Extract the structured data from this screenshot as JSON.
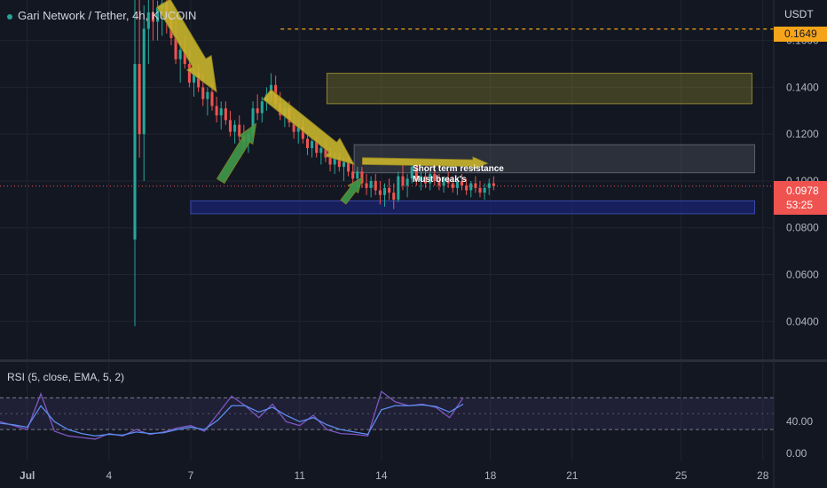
{
  "header": {
    "symbol_title": "Gari Network / Tether, 4h, KUCOIN",
    "price_unit": "USDT"
  },
  "price_badge": {
    "price": "0.0978",
    "countdown": "53:25"
  },
  "target_badge": {
    "price": "0.1649"
  },
  "annotations": {
    "resistance_label": "Short term resistance",
    "breakout_label": "Must break's"
  },
  "colors": {
    "background": "#131722",
    "up_candle": "#26a69a",
    "down_candle": "#ef5350",
    "resistance_zone": "#b5a82e",
    "support_zone": "#1a237e",
    "trend_arrow": "#c9b52c",
    "bounce_arrow": "#3f9a4a",
    "target_line": "#f6a51a",
    "rsi_line": "#7e57c2",
    "rsi_ema": "#5b8def"
  },
  "chart_data": [
    {
      "type": "candlestick",
      "title": "Gari Network / Tether, 4h, KUCOIN",
      "ylabel": "USDT",
      "ylim": [
        0.0238,
        0.1773
      ],
      "y_ticks": [
        "0.1600",
        "0.1400",
        "0.1200",
        "0.1000",
        "0.0800",
        "0.0600",
        "0.0400"
      ],
      "x_ticks": [
        "Jul",
        "4",
        "7",
        "11",
        "14",
        "18",
        "21",
        "25",
        "28"
      ],
      "x_range_days": [
        0,
        28.4
      ],
      "x_tick_days": [
        1,
        4,
        7,
        11,
        14,
        18,
        21,
        25,
        28
      ],
      "last_price": 0.0978,
      "target_level": 0.1649,
      "zones": [
        {
          "name": "upper resistance",
          "from_day": 12.0,
          "to_day": 27.6,
          "low": 0.133,
          "high": 0.146
        },
        {
          "name": "short term resistance",
          "from_day": 13.0,
          "to_day": 27.7,
          "low": 0.1035,
          "high": 0.1155
        },
        {
          "name": "support",
          "from_day": 7.0,
          "to_day": 27.7,
          "low": 0.086,
          "high": 0.0915
        }
      ],
      "candles": {
        "start_day": 4.95,
        "step_days": 0.1667,
        "ohlc": [
          [
            0.075,
            0.178,
            0.038,
            0.15
          ],
          [
            0.15,
            0.18,
            0.11,
            0.12
          ],
          [
            0.12,
            0.175,
            0.1,
            0.165
          ],
          [
            0.165,
            0.178,
            0.15,
            0.172
          ],
          [
            0.172,
            0.178,
            0.16,
            0.168
          ],
          [
            0.168,
            0.177,
            0.16,
            0.174
          ],
          [
            0.174,
            0.178,
            0.162,
            0.176
          ],
          [
            0.176,
            0.178,
            0.163,
            0.17
          ],
          [
            0.17,
            0.176,
            0.158,
            0.161
          ],
          [
            0.161,
            0.17,
            0.15,
            0.152
          ],
          [
            0.152,
            0.16,
            0.142,
            0.156
          ],
          [
            0.156,
            0.162,
            0.148,
            0.15
          ],
          [
            0.15,
            0.156,
            0.14,
            0.142
          ],
          [
            0.142,
            0.15,
            0.136,
            0.146
          ],
          [
            0.146,
            0.15,
            0.138,
            0.14
          ],
          [
            0.14,
            0.146,
            0.132,
            0.135
          ],
          [
            0.135,
            0.14,
            0.128,
            0.138
          ],
          [
            0.138,
            0.142,
            0.13,
            0.132
          ],
          [
            0.132,
            0.136,
            0.125,
            0.128
          ],
          [
            0.128,
            0.134,
            0.122,
            0.131
          ],
          [
            0.131,
            0.134,
            0.124,
            0.126
          ],
          [
            0.126,
            0.13,
            0.119,
            0.121
          ],
          [
            0.121,
            0.126,
            0.116,
            0.124
          ],
          [
            0.124,
            0.128,
            0.117,
            0.119
          ],
          [
            0.119,
            0.124,
            0.114,
            0.117
          ],
          [
            0.117,
            0.122,
            0.112,
            0.12
          ],
          [
            0.12,
            0.134,
            0.118,
            0.131
          ],
          [
            0.131,
            0.137,
            0.126,
            0.129
          ],
          [
            0.129,
            0.136,
            0.125,
            0.134
          ],
          [
            0.134,
            0.14,
            0.13,
            0.137
          ],
          [
            0.137,
            0.146,
            0.134,
            0.141
          ],
          [
            0.141,
            0.145,
            0.131,
            0.133
          ],
          [
            0.133,
            0.138,
            0.126,
            0.128
          ],
          [
            0.128,
            0.134,
            0.123,
            0.131
          ],
          [
            0.131,
            0.134,
            0.123,
            0.125
          ],
          [
            0.125,
            0.129,
            0.118,
            0.121
          ],
          [
            0.121,
            0.126,
            0.116,
            0.123
          ],
          [
            0.123,
            0.126,
            0.116,
            0.118
          ],
          [
            0.118,
            0.121,
            0.111,
            0.114
          ],
          [
            0.114,
            0.119,
            0.11,
            0.117
          ],
          [
            0.117,
            0.119,
            0.11,
            0.112
          ],
          [
            0.112,
            0.116,
            0.107,
            0.114
          ],
          [
            0.114,
            0.117,
            0.108,
            0.11
          ],
          [
            0.11,
            0.114,
            0.104,
            0.107
          ],
          [
            0.107,
            0.112,
            0.103,
            0.11
          ],
          [
            0.11,
            0.112,
            0.104,
            0.106
          ],
          [
            0.106,
            0.11,
            0.1,
            0.108
          ],
          [
            0.108,
            0.111,
            0.102,
            0.104
          ],
          [
            0.104,
            0.108,
            0.098,
            0.101
          ],
          [
            0.101,
            0.106,
            0.097,
            0.104
          ],
          [
            0.104,
            0.106,
            0.097,
            0.099
          ],
          [
            0.099,
            0.103,
            0.094,
            0.097
          ],
          [
            0.097,
            0.102,
            0.093,
            0.1
          ],
          [
            0.1,
            0.103,
            0.094,
            0.096
          ],
          [
            0.096,
            0.1,
            0.09,
            0.094
          ],
          [
            0.094,
            0.099,
            0.089,
            0.097
          ],
          [
            0.097,
            0.101,
            0.092,
            0.095
          ],
          [
            0.095,
            0.099,
            0.088,
            0.092
          ],
          [
            0.092,
            0.104,
            0.091,
            0.102
          ],
          [
            0.102,
            0.107,
            0.096,
            0.098
          ],
          [
            0.098,
            0.103,
            0.093,
            0.101
          ],
          [
            0.101,
            0.108,
            0.099,
            0.106
          ],
          [
            0.106,
            0.108,
            0.098,
            0.1
          ],
          [
            0.1,
            0.104,
            0.096,
            0.102
          ],
          [
            0.102,
            0.105,
            0.097,
            0.099
          ],
          [
            0.099,
            0.104,
            0.096,
            0.103
          ],
          [
            0.103,
            0.106,
            0.098,
            0.1
          ],
          [
            0.1,
            0.103,
            0.096,
            0.098
          ],
          [
            0.098,
            0.102,
            0.095,
            0.101
          ],
          [
            0.101,
            0.104,
            0.097,
            0.099
          ],
          [
            0.099,
            0.102,
            0.095,
            0.097
          ],
          [
            0.097,
            0.101,
            0.094,
            0.1
          ],
          [
            0.1,
            0.103,
            0.096,
            0.098
          ],
          [
            0.098,
            0.101,
            0.094,
            0.096
          ],
          [
            0.096,
            0.1,
            0.093,
            0.099
          ],
          [
            0.099,
            0.102,
            0.095,
            0.097
          ],
          [
            0.097,
            0.1,
            0.093,
            0.095
          ],
          [
            0.095,
            0.099,
            0.092,
            0.097
          ],
          [
            0.097,
            0.101,
            0.094,
            0.099
          ],
          [
            0.099,
            0.102,
            0.096,
            0.0978
          ]
        ]
      }
    },
    {
      "type": "line",
      "title": "RSI (5, close, EMA, 5, 2)",
      "ylim": [
        -10,
        115
      ],
      "y_ticks": [
        40,
        0
      ],
      "bands": [
        30,
        70
      ],
      "band_labels": [
        "40.00",
        "0.00"
      ],
      "band_label_values": [
        40,
        0
      ],
      "x_range_days": [
        0,
        28.4
      ],
      "series": [
        {
          "name": "RSI",
          "x_days": [
            0,
            0.5,
            1.0,
            1.5,
            2.0,
            2.5,
            3.0,
            3.5,
            4.0,
            4.5,
            5.0,
            5.5,
            6.0,
            6.5,
            7.0,
            7.5,
            8.0,
            8.5,
            9.0,
            9.5,
            10.0,
            10.5,
            11.0,
            11.5,
            12.0,
            12.5,
            13.0,
            13.5,
            14.0,
            14.5,
            15.0,
            15.5,
            16.0,
            16.5,
            17.0
          ],
          "values": [
            40,
            35,
            30,
            75,
            28,
            22,
            20,
            18,
            25,
            22,
            30,
            24,
            27,
            32,
            35,
            28,
            50,
            72,
            60,
            45,
            62,
            40,
            35,
            48,
            30,
            25,
            24,
            22,
            78,
            65,
            60,
            62,
            58,
            45,
            70
          ]
        },
        {
          "name": "EMA",
          "x_days": [
            0,
            0.5,
            1.0,
            1.5,
            2.0,
            2.5,
            3.0,
            3.5,
            4.0,
            4.5,
            5.0,
            5.5,
            6.0,
            6.5,
            7.0,
            7.5,
            8.0,
            8.5,
            9.0,
            9.5,
            10.0,
            10.5,
            11.0,
            11.5,
            12.0,
            12.5,
            13.0,
            13.5,
            14.0,
            14.5,
            15.0,
            15.5,
            16.0,
            16.5,
            17.0
          ],
          "values": [
            38,
            36,
            33,
            60,
            40,
            30,
            25,
            22,
            24,
            23,
            27,
            25,
            26,
            30,
            33,
            30,
            42,
            60,
            60,
            52,
            58,
            48,
            40,
            45,
            36,
            30,
            27,
            24,
            55,
            60,
            60,
            61,
            59,
            52,
            62
          ]
        }
      ]
    }
  ]
}
